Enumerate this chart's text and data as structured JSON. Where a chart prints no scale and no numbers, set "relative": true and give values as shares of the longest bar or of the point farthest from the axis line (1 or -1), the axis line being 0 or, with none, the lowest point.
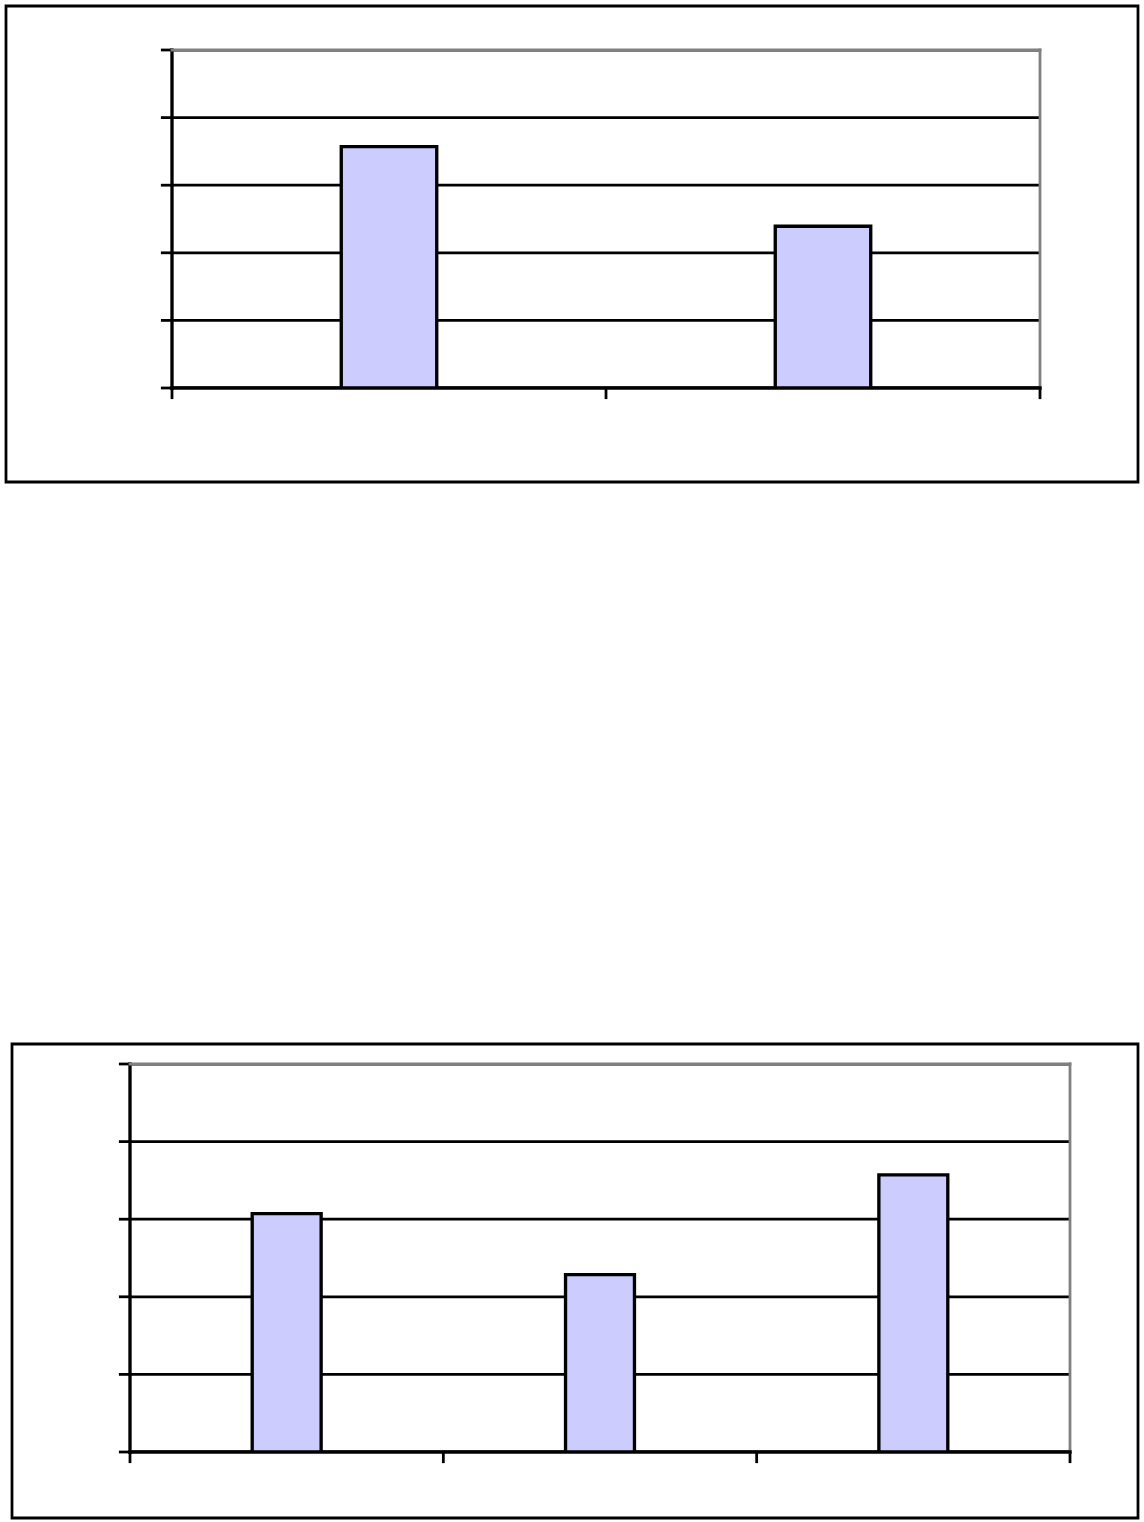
{
  "chart_data": [
    {
      "type": "bar",
      "relative": true,
      "categories": [
        null,
        null
      ],
      "values": [
        1,
        0.67
      ],
      "color": "#ccccff",
      "grid": "y"
    },
    {
      "type": "bar",
      "relative": true,
      "categories": [
        null,
        null,
        null
      ],
      "values": [
        0.86,
        0.64,
        1
      ],
      "color": "#ccccff",
      "grid": "y"
    }
  ]
}
